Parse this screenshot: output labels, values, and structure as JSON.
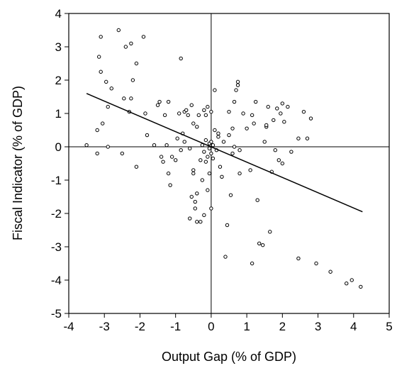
{
  "chart_data": {
    "type": "scatter",
    "title": "",
    "xlabel": "Output Gap (% of GDP)",
    "ylabel": "Fiscal Indicator (% of GDP)",
    "xlim": [
      -4,
      5
    ],
    "ylim": [
      -5,
      4
    ],
    "xticks": [
      "-4",
      "-3",
      "-2",
      "-1",
      "0",
      "1",
      "2",
      "3",
      "4",
      "5"
    ],
    "yticks": [
      "4",
      "3",
      "2",
      "1",
      "0",
      "-1",
      "-2",
      "-3",
      "-4",
      "-5"
    ],
    "grid": false,
    "legend": "none",
    "reference_lines": {
      "x": 0,
      "y": 0
    },
    "trend_line": {
      "x": [
        -3.5,
        4.25
      ],
      "y": [
        1.6,
        -1.95
      ]
    },
    "points": [
      {
        "x": -3.5,
        "y": 0.05
      },
      {
        "x": -3.2,
        "y": 0.5
      },
      {
        "x": -3.2,
        "y": -0.2
      },
      {
        "x": -3.1,
        "y": 3.3
      },
      {
        "x": -3.15,
        "y": 2.7
      },
      {
        "x": -3.1,
        "y": 2.25
      },
      {
        "x": -3.05,
        "y": 0.7
      },
      {
        "x": -2.95,
        "y": 1.95
      },
      {
        "x": -2.9,
        "y": 1.2
      },
      {
        "x": -2.9,
        "y": 0.0
      },
      {
        "x": -2.8,
        "y": 1.75
      },
      {
        "x": -2.6,
        "y": 3.5
      },
      {
        "x": -2.5,
        "y": -0.2
      },
      {
        "x": -2.45,
        "y": 1.45
      },
      {
        "x": -2.4,
        "y": 3.0
      },
      {
        "x": -2.3,
        "y": 1.05
      },
      {
        "x": -2.25,
        "y": 3.1
      },
      {
        "x": -2.25,
        "y": 1.45
      },
      {
        "x": -2.2,
        "y": 2.0
      },
      {
        "x": -2.1,
        "y": 2.5
      },
      {
        "x": -2.1,
        "y": -0.6
      },
      {
        "x": -1.9,
        "y": 3.3
      },
      {
        "x": -1.85,
        "y": 1.0
      },
      {
        "x": -1.8,
        "y": 0.35
      },
      {
        "x": -1.6,
        "y": 0.05
      },
      {
        "x": -1.5,
        "y": 1.25
      },
      {
        "x": -1.45,
        "y": 1.35
      },
      {
        "x": -1.4,
        "y": -0.3
      },
      {
        "x": -1.35,
        "y": -0.45
      },
      {
        "x": -1.3,
        "y": 0.95
      },
      {
        "x": -1.25,
        "y": 0.05
      },
      {
        "x": -1.2,
        "y": 1.35
      },
      {
        "x": -1.2,
        "y": -0.8
      },
      {
        "x": -1.15,
        "y": -1.15
      },
      {
        "x": -1.1,
        "y": -0.3
      },
      {
        "x": -1.0,
        "y": -0.4
      },
      {
        "x": -0.95,
        "y": 0.25
      },
      {
        "x": -0.9,
        "y": 1.0
      },
      {
        "x": -0.85,
        "y": 2.65
      },
      {
        "x": -0.85,
        "y": -0.1
      },
      {
        "x": -0.8,
        "y": 0.4
      },
      {
        "x": -0.75,
        "y": 1.05
      },
      {
        "x": -0.75,
        "y": 0.15
      },
      {
        "x": -0.7,
        "y": 1.1
      },
      {
        "x": -0.65,
        "y": 0.95
      },
      {
        "x": -0.6,
        "y": -0.05
      },
      {
        "x": -0.6,
        "y": -2.15
      },
      {
        "x": -0.55,
        "y": -1.5
      },
      {
        "x": -0.55,
        "y": 1.25
      },
      {
        "x": -0.5,
        "y": 0.7
      },
      {
        "x": -0.5,
        "y": -0.7
      },
      {
        "x": -0.5,
        "y": -0.8
      },
      {
        "x": -0.45,
        "y": -1.65
      },
      {
        "x": -0.45,
        "y": -1.85
      },
      {
        "x": -0.4,
        "y": 0.6
      },
      {
        "x": -0.4,
        "y": -1.4
      },
      {
        "x": -0.4,
        "y": -2.25
      },
      {
        "x": -0.35,
        "y": 0.95
      },
      {
        "x": -0.3,
        "y": -0.4
      },
      {
        "x": -0.3,
        "y": -2.25
      },
      {
        "x": -0.25,
        "y": 0.05
      },
      {
        "x": -0.25,
        "y": -1.0
      },
      {
        "x": -0.2,
        "y": 1.1
      },
      {
        "x": -0.2,
        "y": -0.15
      },
      {
        "x": -0.2,
        "y": -2.05
      },
      {
        "x": -0.15,
        "y": 0.95
      },
      {
        "x": -0.15,
        "y": 0.2
      },
      {
        "x": -0.15,
        "y": -0.45
      },
      {
        "x": -0.1,
        "y": 1.2
      },
      {
        "x": -0.1,
        "y": -0.3
      },
      {
        "x": -0.1,
        "y": -1.3
      },
      {
        "x": -0.05,
        "y": 0.1
      },
      {
        "x": -0.05,
        "y": -0.05
      },
      {
        "x": -0.05,
        "y": -0.8
      },
      {
        "x": 0.0,
        "y": 1.05
      },
      {
        "x": 0.0,
        "y": 0.15
      },
      {
        "x": 0.0,
        "y": -0.2
      },
      {
        "x": 0.0,
        "y": -1.85
      },
      {
        "x": 0.05,
        "y": 0.05
      },
      {
        "x": 0.05,
        "y": -0.35
      },
      {
        "x": 0.1,
        "y": 1.7
      },
      {
        "x": 0.1,
        "y": 0.5
      },
      {
        "x": 0.15,
        "y": -0.1
      },
      {
        "x": 0.2,
        "y": 0.4
      },
      {
        "x": 0.2,
        "y": 0.3
      },
      {
        "x": 0.25,
        "y": -0.6
      },
      {
        "x": 0.3,
        "y": -0.9
      },
      {
        "x": 0.35,
        "y": 0.15
      },
      {
        "x": 0.4,
        "y": -3.3
      },
      {
        "x": 0.45,
        "y": -2.35
      },
      {
        "x": 0.5,
        "y": 1.05
      },
      {
        "x": 0.5,
        "y": 0.35
      },
      {
        "x": 0.55,
        "y": -1.45
      },
      {
        "x": 0.6,
        "y": 0.55
      },
      {
        "x": 0.6,
        "y": -0.2
      },
      {
        "x": 0.65,
        "y": 1.35
      },
      {
        "x": 0.65,
        "y": 0.0
      },
      {
        "x": 0.7,
        "y": 1.7
      },
      {
        "x": 0.75,
        "y": 1.85
      },
      {
        "x": 0.75,
        "y": 1.95
      },
      {
        "x": 0.8,
        "y": -0.1
      },
      {
        "x": 0.8,
        "y": -0.8
      },
      {
        "x": 0.9,
        "y": 1.0
      },
      {
        "x": 1.0,
        "y": 0.55
      },
      {
        "x": 1.1,
        "y": -0.7
      },
      {
        "x": 1.15,
        "y": 0.95
      },
      {
        "x": 1.15,
        "y": -3.5
      },
      {
        "x": 1.2,
        "y": 0.7
      },
      {
        "x": 1.25,
        "y": 1.35
      },
      {
        "x": 1.3,
        "y": -1.6
      },
      {
        "x": 1.35,
        "y": -2.9
      },
      {
        "x": 1.45,
        "y": -2.95
      },
      {
        "x": 1.5,
        "y": 0.15
      },
      {
        "x": 1.55,
        "y": 0.6
      },
      {
        "x": 1.55,
        "y": 0.65
      },
      {
        "x": 1.6,
        "y": 1.2
      },
      {
        "x": 1.65,
        "y": -2.55
      },
      {
        "x": 1.7,
        "y": -0.75
      },
      {
        "x": 1.75,
        "y": 0.8
      },
      {
        "x": 1.8,
        "y": -0.1
      },
      {
        "x": 1.85,
        "y": 1.15
      },
      {
        "x": 1.9,
        "y": -0.4
      },
      {
        "x": 1.95,
        "y": 1.0
      },
      {
        "x": 2.0,
        "y": 1.3
      },
      {
        "x": 2.0,
        "y": -0.5
      },
      {
        "x": 2.05,
        "y": 0.75
      },
      {
        "x": 2.15,
        "y": 1.2
      },
      {
        "x": 2.25,
        "y": -0.15
      },
      {
        "x": 2.45,
        "y": 0.25
      },
      {
        "x": 2.45,
        "y": -3.35
      },
      {
        "x": 2.6,
        "y": 1.05
      },
      {
        "x": 2.7,
        "y": 0.25
      },
      {
        "x": 2.8,
        "y": 0.85
      },
      {
        "x": 2.95,
        "y": -3.5
      },
      {
        "x": 3.35,
        "y": -3.75
      },
      {
        "x": 3.8,
        "y": -4.1
      },
      {
        "x": 3.95,
        "y": -4.0
      },
      {
        "x": 4.2,
        "y": -4.2
      }
    ]
  }
}
